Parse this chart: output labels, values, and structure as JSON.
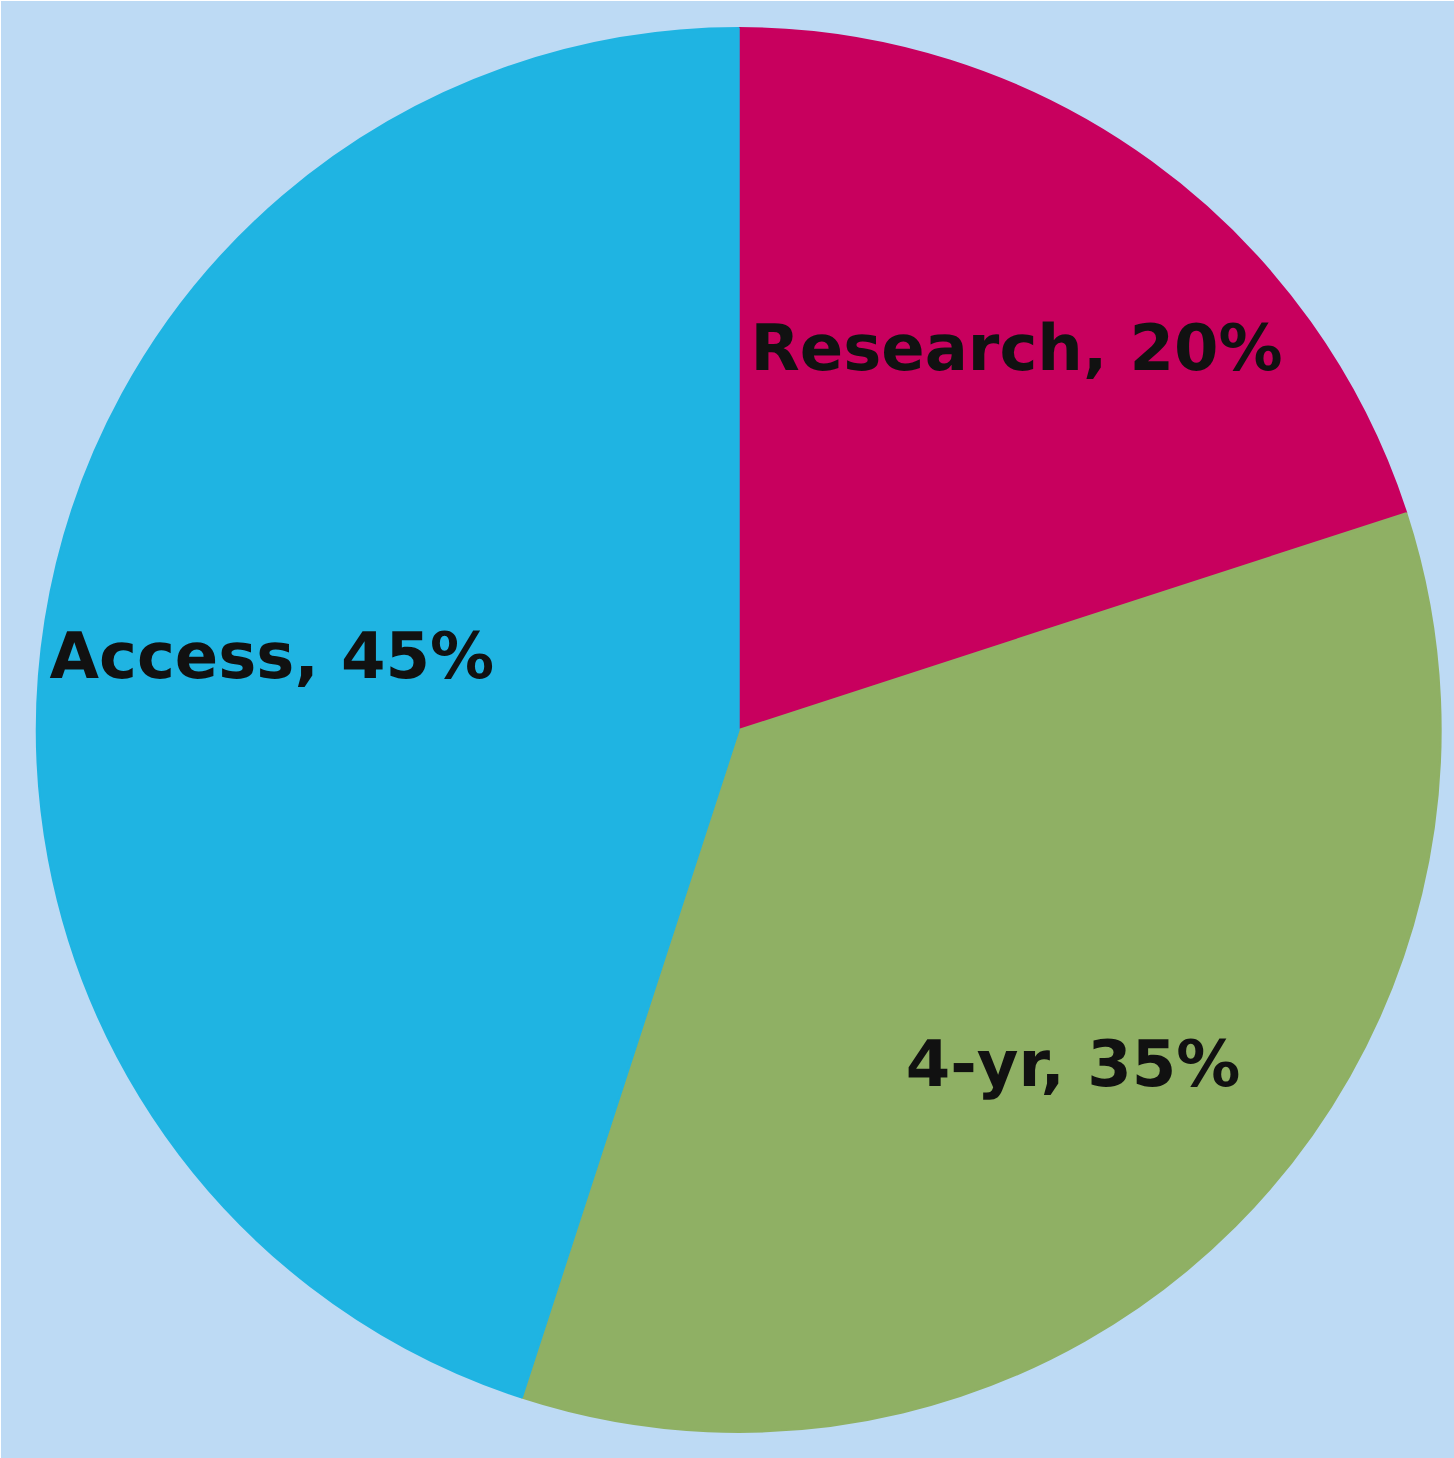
{
  "chart_data": {
    "type": "pie",
    "categories": [
      "Research",
      "4-yr",
      "Access"
    ],
    "values": [
      20,
      35,
      45
    ],
    "colors": [
      "#c8005e",
      "#8fb064",
      "#1fb4e2"
    ],
    "value_labels": [
      "20%",
      "35%",
      "45%"
    ]
  }
}
